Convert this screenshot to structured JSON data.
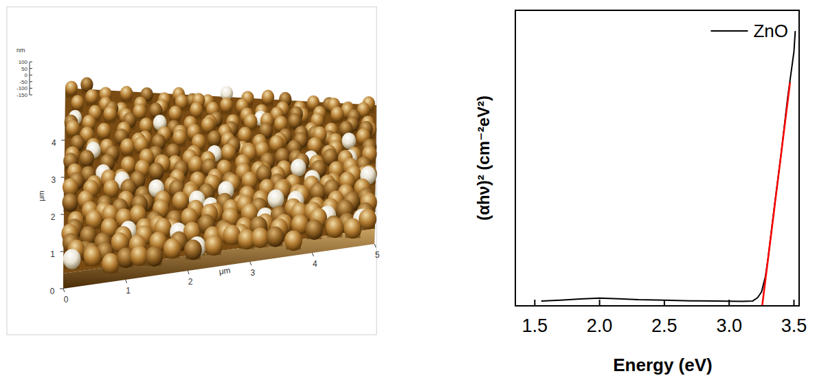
{
  "chart_data": [
    {
      "type": "surface",
      "x_label": "μm",
      "y_label": "μm",
      "z_label": "nm",
      "xlim": [
        0,
        5
      ],
      "xticks": [
        0,
        1,
        2,
        3,
        4,
        5
      ],
      "ylim": [
        0,
        5
      ],
      "yticks": [
        0,
        1,
        2,
        3,
        4
      ],
      "zlim": [
        -150,
        100
      ],
      "zticks": [
        100,
        50,
        0,
        -50,
        -100,
        -150
      ]
    },
    {
      "type": "line",
      "x_label": "Energy (eV)",
      "y_label": "(αhν)² (cm⁻²eV²)",
      "xlim": [
        1.35,
        3.54
      ],
      "xticks": [
        1.5,
        {
          "value": 2,
          "label": "2.0"
        },
        2.5,
        {
          "value": 3,
          "label": "3.0"
        },
        3.5
      ],
      "ylim": [
        0,
        100
      ],
      "tick_labels": "x",
      "legend": "upper right",
      "series": [
        {
          "name": "ZnO",
          "color": "#000000",
          "line_style": "solid",
          "x": [
            1.55,
            1.7,
            1.85,
            2.0,
            2.15,
            2.3,
            2.5,
            2.7,
            2.9,
            3.1,
            3.18,
            3.22,
            3.25,
            3.28,
            3.3,
            3.35,
            3.4,
            3.45,
            3.5,
            3.51
          ],
          "values": [
            1.6,
            1.9,
            2.3,
            2.6,
            2.4,
            2.1,
            1.9,
            1.7,
            1.6,
            1.5,
            1.6,
            2.8,
            4.7,
            10,
            16,
            34,
            51,
            70,
            86,
            93
          ]
        },
        {
          "color": "#ff0000",
          "line_style": "solid",
          "x": [
            3.255,
            3.47
          ],
          "values": [
            0,
            75.6
          ]
        }
      ]
    }
  ]
}
